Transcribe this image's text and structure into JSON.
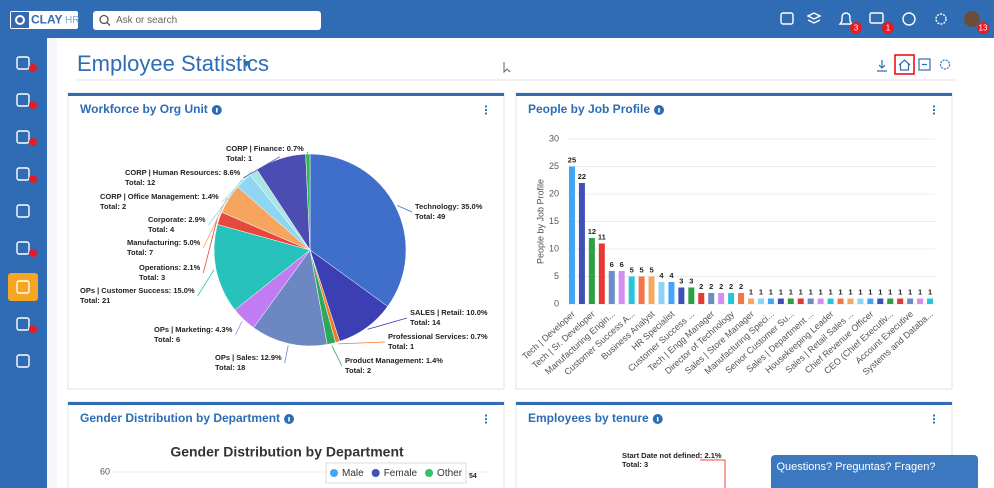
{
  "header": {
    "logo": "CLAY",
    "logo_suffix": "HR",
    "search_placeholder": "Ask or search",
    "badges": [
      3,
      1,
      13
    ]
  },
  "page_title": "Employee Statistics",
  "panels": [
    {
      "title": "Workforce by Org Unit",
      "chart": {
        "type": "pie",
        "categories": [
          "Technology: 35.0%",
          "SALES | Retail: 10.0%",
          "Professional Services: 0.7%",
          "Product Management: 1.4%",
          "OPs | Sales: 12.9%",
          "OPs | Marketing: 4.3%",
          "OPs | Customer Success: 15.0%",
          "Operations: 2.1%",
          "Manufacturing: 5.0%",
          "Corporate: 2.9%",
          "CORP | Office Management: 1.4%",
          "CORP | Human Resources: 8.6%",
          "CORP | Finance: 0.7%"
        ],
        "values": [
          49,
          14,
          1,
          2,
          18,
          6,
          21,
          3,
          7,
          4,
          2,
          12,
          1
        ],
        "value_labels": [
          "Total: 49",
          "Total: 14",
          "Total: 1",
          "Total: 2",
          "Total: 18",
          "Total: 6",
          "Total: 21",
          "Total: 3",
          "Total: 7",
          "Total: 4",
          "Total: 2",
          "Total: 12",
          "Total: 1"
        ],
        "colors": [
          "#3f6fca",
          "#3b3fb3",
          "#f2792b",
          "#2fa85a",
          "#6c87c1",
          "#c27cf2",
          "#27c2bb",
          "#e5483c",
          "#f5a55e",
          "#8ed6f2",
          "#a8e6e6",
          "#4b4db2",
          "#2db84d"
        ]
      }
    },
    {
      "title": "People by Job Profile",
      "chart": {
        "type": "bar",
        "y_label": "People by Job Profile",
        "categories": [
          "Tech | Developer",
          null,
          "Tech | Sr. Developer",
          null,
          "Manufacturing Engin...",
          null,
          "Customer Success A...",
          null,
          "Business Analyst",
          null,
          "HR Specialist",
          null,
          "Customer Success ...",
          null,
          "Tech | Engg Manager",
          null,
          "Director of Technology",
          null,
          "Sales | Store Manager",
          null,
          "Manufacturing Speci...",
          null,
          "Senior Customer Su...",
          null,
          "Sales | Department ...",
          null,
          "Housekeeping Leader",
          null,
          "Sales | Retail Sales ...",
          null,
          "Chief Revenue Officer",
          null,
          "CEO (Chief Executiv...",
          null,
          "Account Executive",
          null,
          "Systems and Databa..."
        ],
        "values": [
          25,
          22,
          12,
          11,
          6,
          6,
          5,
          5,
          5,
          4,
          4,
          3,
          3,
          2,
          2,
          2,
          2,
          2,
          1,
          1,
          1,
          1,
          1,
          1,
          1,
          1,
          1,
          1,
          1,
          1,
          1,
          1,
          1,
          1,
          1,
          1,
          1
        ],
        "colors": [
          "#42a5f5",
          "#3f51b5",
          "#2ea043",
          "#e53935",
          "#6d8bc7",
          "#d68cf0",
          "#26c6da",
          "#f4754a",
          "#f4a860",
          "#8fd3f4"
        ],
        "ylim": [
          0,
          30
        ],
        "yticks": [
          0,
          5,
          10,
          15,
          20,
          25,
          30
        ],
        "grid": true
      }
    },
    {
      "title": "Gender Distribution by Department",
      "chart": {
        "type": "bar",
        "title": "Gender Distribution by Department",
        "series": [
          {
            "name": "Male",
            "color": "#42a5f5"
          },
          {
            "name": "Female",
            "color": "#3f51b5"
          },
          {
            "name": "Other",
            "color": "#2ec46a"
          }
        ],
        "yticks": [
          60
        ],
        "annotations": [
          "54"
        ]
      }
    },
    {
      "title": "Employees by tenure",
      "chart": {
        "type": "pie",
        "categories": [
          "Start Date not defined: 2.1%"
        ],
        "value_labels": [
          "Total: 3"
        ]
      }
    }
  ],
  "chat_button": "Questions? Preguntas? Fragen?"
}
